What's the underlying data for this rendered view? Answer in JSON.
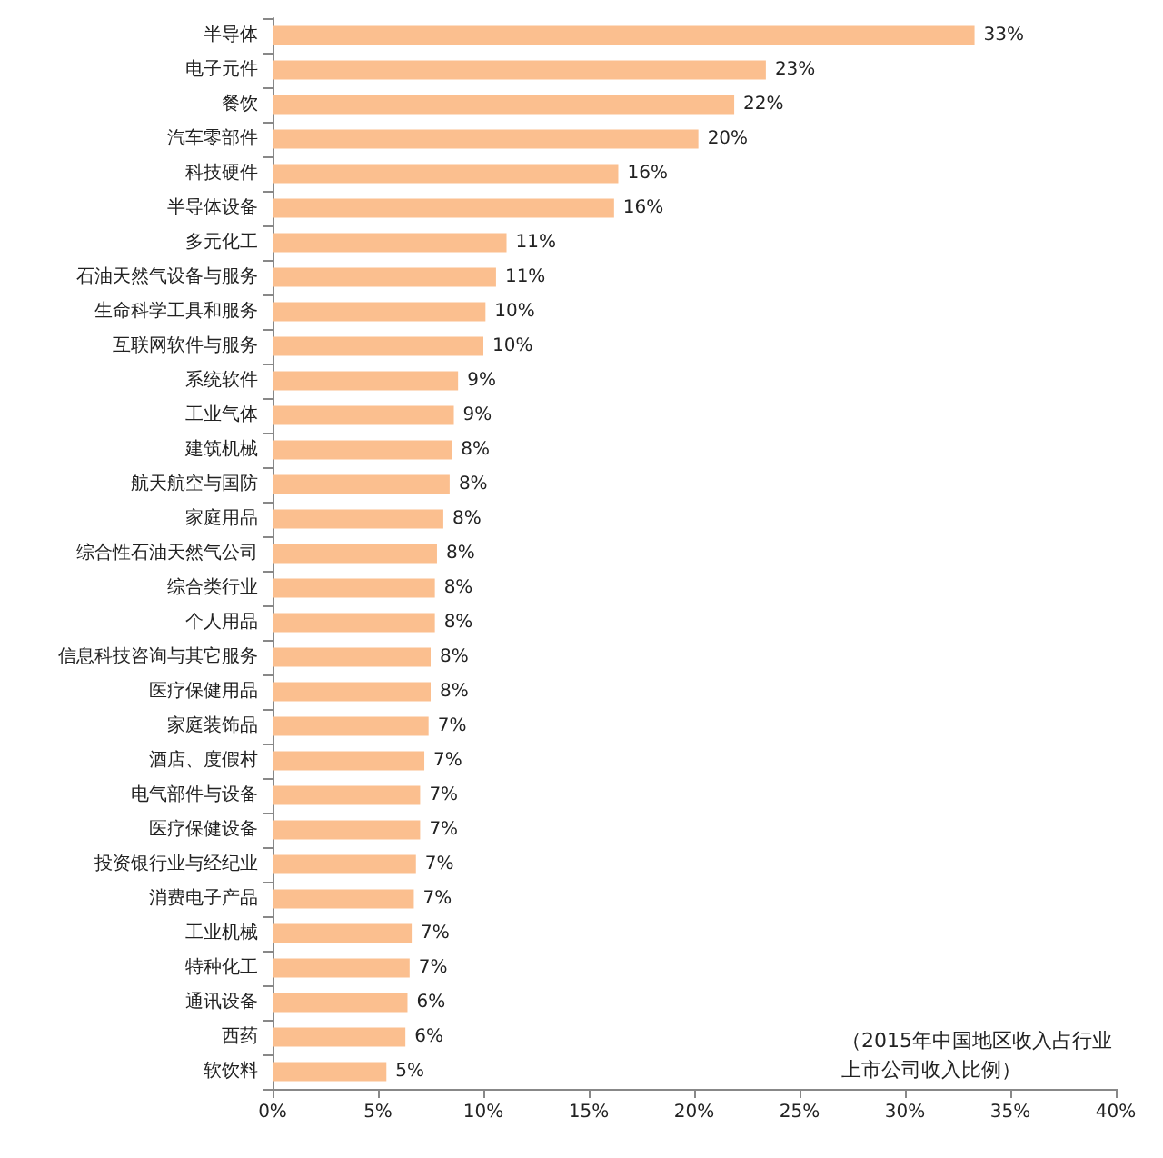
{
  "chart_data": {
    "type": "bar",
    "orientation": "horizontal",
    "categories": [
      "半导体",
      "电子元件",
      "餐饮",
      "汽车零部件",
      "科技硬件",
      "半导体设备",
      "多元化工",
      "石油天然气设备与服务",
      "生命科学工具和服务",
      "互联网软件与服务",
      "系统软件",
      "工业气体",
      "建筑机械",
      "航天航空与国防",
      "家庭用品",
      "综合性石油天然气公司",
      "综合类行业",
      "个人用品",
      "信息科技咨询与其它服务",
      "医疗保健用品",
      "家庭装饰品",
      "酒店、度假村",
      "电气部件与设备",
      "医疗保健设备",
      "投资银行业与经纪业",
      "消费电子产品",
      "工业机械",
      "特种化工",
      "通讯设备",
      "西药",
      "软饮料"
    ],
    "values": [
      33.3,
      23.4,
      21.9,
      20.2,
      16.4,
      16.2,
      11.1,
      10.6,
      10.1,
      10.0,
      8.8,
      8.6,
      8.5,
      8.4,
      8.1,
      7.8,
      7.7,
      7.7,
      7.5,
      7.5,
      7.4,
      7.2,
      7.0,
      7.0,
      6.8,
      6.7,
      6.6,
      6.5,
      6.4,
      6.3,
      5.4
    ],
    "value_labels": [
      "33%",
      "23%",
      "22%",
      "20%",
      "16%",
      "16%",
      "11%",
      "11%",
      "10%",
      "10%",
      "9%",
      "9%",
      "8%",
      "8%",
      "8%",
      "8%",
      "8%",
      "8%",
      "8%",
      "8%",
      "7%",
      "7%",
      "7%",
      "7%",
      "7%",
      "7%",
      "7%",
      "7%",
      "6%",
      "6%",
      "5%"
    ],
    "color": "#fbbf8f",
    "xlim": [
      0,
      40
    ],
    "xticks": [
      {
        "value": 0,
        "label": "0%"
      },
      {
        "value": 5,
        "label": "5%"
      },
      {
        "value": 10,
        "label": "10%"
      },
      {
        "value": 15,
        "label": "15%"
      },
      {
        "value": 20,
        "label": "20%"
      },
      {
        "value": 25,
        "label": "25%"
      },
      {
        "value": 30,
        "label": "30%"
      },
      {
        "value": 35,
        "label": "35%"
      },
      {
        "value": 40,
        "label": "40%"
      }
    ],
    "annotations": [
      "（2015年中国地区收入占行业",
      "上市公司收入比例）"
    ]
  }
}
